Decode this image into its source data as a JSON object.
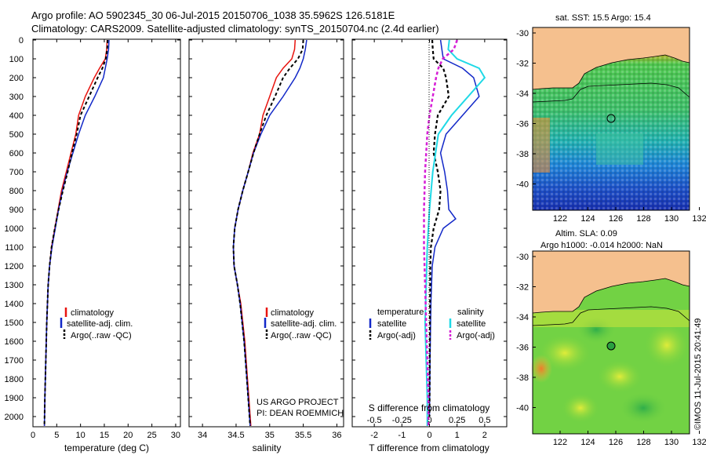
{
  "header": {
    "line1": "Argo profile: AO 5902345_30 06-Jul-2015 20150706_1038 35.5962S 126.5181E",
    "line2": "Climatology: CARS2009. Satellite-adjusted climatology: synTS_20150704.nc (2.4d earlier)"
  },
  "colors": {
    "climatology": "#e8140f",
    "satellite": "#1228c8",
    "argo": "#000000",
    "sal_satellite": "#1fd9e6",
    "sal_argo": "#d61fd6",
    "land": "#f5c08e"
  },
  "chart_data": [
    {
      "type": "line",
      "id": "temperature",
      "xlabel": "temperature (deg C)",
      "xlim": [
        0,
        31
      ],
      "xticks": [
        0,
        5,
        10,
        15,
        20,
        25,
        30
      ],
      "ylim": [
        0,
        2050
      ],
      "yticks": [
        0,
        100,
        200,
        300,
        400,
        500,
        600,
        700,
        800,
        900,
        1000,
        1100,
        1200,
        1300,
        1400,
        1500,
        1600,
        1700,
        1800,
        1900,
        2000
      ],
      "legend": [
        "climatology",
        "satellite-adj. clim.",
        "Argo(..raw -QC)"
      ],
      "series": [
        {
          "name": "climatology",
          "depth": [
            0,
            50,
            100,
            150,
            200,
            300,
            400,
            500,
            600,
            700,
            800,
            900,
            1000,
            1100,
            1200,
            1300,
            1500,
            1700,
            1900,
            2050
          ],
          "values": [
            15.6,
            15.5,
            15.2,
            14.0,
            12.9,
            11.0,
            9.6,
            9.0,
            8.0,
            7.0,
            6.0,
            5.3,
            4.6,
            3.9,
            3.5,
            3.2,
            2.9,
            2.7,
            2.5,
            2.4
          ]
        },
        {
          "name": "satellite-adj. clim.",
          "depth": [
            0,
            50,
            100,
            150,
            200,
            300,
            400,
            500,
            600,
            700,
            800,
            900,
            1000,
            1100,
            1200,
            1300,
            1500,
            1700,
            1900,
            2050
          ],
          "values": [
            16.0,
            15.9,
            15.6,
            15.2,
            14.8,
            13.0,
            11.0,
            9.6,
            8.4,
            7.2,
            6.2,
            5.4,
            4.7,
            4.0,
            3.5,
            3.2,
            2.9,
            2.7,
            2.5,
            2.4
          ]
        },
        {
          "name": "Argo(..raw -QC)",
          "depth": [
            0,
            50,
            100,
            150,
            200,
            300,
            400,
            500,
            600,
            700,
            800,
            900,
            1000,
            1100,
            1200,
            1300,
            1500,
            1700,
            1900,
            2050
          ],
          "values": [
            15.7,
            15.6,
            15.3,
            14.6,
            13.6,
            11.8,
            10.0,
            9.2,
            8.2,
            7.3,
            6.3,
            5.4,
            4.6,
            3.9,
            3.5,
            3.2,
            2.9,
            2.7,
            2.5,
            2.4
          ]
        }
      ]
    },
    {
      "type": "line",
      "id": "salinity",
      "xlabel": "salinity",
      "xlim": [
        33.8,
        36.1
      ],
      "xticks": [
        34,
        34.5,
        35,
        35.5,
        36
      ],
      "ylim": [
        0,
        2050
      ],
      "legend": [
        "climatology",
        "satellite-adj. clim.",
        "Argo(..raw -QC)"
      ],
      "annotation": [
        "US ARGO PROJECT",
        "PI: DEAN ROEMMICH"
      ],
      "series": [
        {
          "name": "climatology",
          "depth": [
            0,
            50,
            100,
            150,
            200,
            300,
            400,
            500,
            600,
            700,
            800,
            900,
            1000,
            1100,
            1200,
            1300,
            1400,
            1600,
            1800,
            2050
          ],
          "values": [
            35.38,
            35.37,
            35.33,
            35.2,
            35.1,
            35.0,
            34.9,
            34.85,
            34.75,
            34.68,
            34.6,
            34.53,
            34.48,
            34.46,
            34.47,
            34.52,
            34.57,
            34.63,
            34.67,
            34.72
          ]
        },
        {
          "name": "satellite-adj. clim.",
          "depth": [
            0,
            50,
            100,
            150,
            200,
            300,
            400,
            500,
            600,
            700,
            800,
            900,
            1000,
            1100,
            1200,
            1300,
            1400,
            1600,
            1800,
            2050
          ],
          "values": [
            35.55,
            35.53,
            35.5,
            35.45,
            35.38,
            35.2,
            35.0,
            34.87,
            34.76,
            34.68,
            34.6,
            34.53,
            34.48,
            34.46,
            34.47,
            34.52,
            34.56,
            34.62,
            34.66,
            34.71
          ]
        },
        {
          "name": "Argo(..raw -QC)",
          "depth": [
            0,
            50,
            100,
            150,
            200,
            300,
            400,
            500,
            600,
            700,
            800,
            900,
            1000,
            1100,
            1200,
            1300,
            1400,
            1600,
            1800,
            2050
          ],
          "values": [
            35.5,
            35.49,
            35.42,
            35.3,
            35.2,
            35.08,
            34.95,
            34.85,
            34.76,
            34.68,
            34.6,
            34.53,
            34.48,
            34.46,
            34.47,
            34.52,
            34.56,
            34.62,
            34.66,
            34.71
          ]
        }
      ]
    },
    {
      "type": "line",
      "id": "difference",
      "xlabel_top": "S difference from climatology",
      "xlabel_bottom": "T difference from climatology",
      "s_ticks": [
        "-0.5",
        "-0.25",
        "0",
        "0.25",
        "0.5"
      ],
      "t_ticks": [
        "-2",
        "-1",
        "0",
        "1",
        "2"
      ],
      "xlim": [
        -2.8,
        2.8
      ],
      "ylim": [
        0,
        2050
      ],
      "legend_left_title": "temperature",
      "legend_right_title": "salinity",
      "legend_left": [
        "satellite",
        "Argo(-adj)"
      ],
      "legend_right": [
        "satellite",
        "Argo(-adj)"
      ],
      "series": [
        {
          "name": "T satellite",
          "depth": [
            0,
            50,
            100,
            150,
            200,
            300,
            400,
            500,
            600,
            700,
            800,
            900,
            950,
            1000,
            1100,
            1200,
            1400,
            1700,
            2000
          ],
          "values": [
            0.4,
            0.45,
            0.5,
            1.2,
            1.6,
            1.8,
            1.2,
            0.6,
            0.4,
            0.55,
            0.65,
            0.7,
            0.95,
            0.5,
            0.2,
            0.1,
            0.05,
            0.02,
            0.0
          ]
        },
        {
          "name": "T Argo(-adj)",
          "depth": [
            0,
            50,
            100,
            150,
            200,
            300,
            400,
            500,
            600,
            700,
            800,
            900,
            1000,
            1100,
            1200,
            1400,
            1700,
            2000
          ],
          "values": [
            0.1,
            0.12,
            0.15,
            0.5,
            0.6,
            0.7,
            0.3,
            0.2,
            0.15,
            0.3,
            0.4,
            0.35,
            0.15,
            0.05,
            0.03,
            0.02,
            0.01,
            0.0
          ]
        },
        {
          "name": "S satellite",
          "depth": [
            0,
            50,
            100,
            150,
            200,
            300,
            400,
            500,
            700,
            900,
            1100,
            1300,
            1500,
            1700,
            1900,
            2050
          ],
          "values": [
            0.18,
            0.17,
            0.25,
            0.45,
            0.5,
            0.35,
            0.2,
            0.08,
            0.03,
            0.0,
            -0.02,
            -0.03,
            -0.04,
            -0.03,
            -0.02,
            -0.02
          ]
        },
        {
          "name": "S Argo(-adj)",
          "depth": [
            0,
            50,
            100,
            150,
            200,
            300,
            400,
            500,
            700,
            900,
            1100,
            1300,
            1500,
            1700,
            1900,
            2050
          ],
          "values": [
            0.25,
            0.22,
            0.12,
            0.08,
            0.06,
            0.03,
            0.0,
            -0.02,
            -0.04,
            -0.05,
            -0.05,
            -0.04,
            -0.03,
            -0.02,
            -0.01,
            -0.01
          ]
        }
      ]
    }
  ],
  "maps": {
    "sst": {
      "title": "sat. SST: 15.5 Argo: 15.4",
      "lat_ticks": [
        "-30",
        "-32",
        "-34",
        "-36",
        "-38",
        "-40"
      ],
      "lon_ticks": [
        "122",
        "124",
        "126",
        "128",
        "130",
        "132"
      ]
    },
    "sla": {
      "title1": "Altim. SLA: 0.09",
      "title2": "Argo h1000: -0.014 h2000: NaN",
      "lat_ticks": [
        "-30",
        "-32",
        "-34",
        "-36",
        "-38",
        "-40"
      ],
      "lon_ticks": [
        "122",
        "124",
        "126",
        "128",
        "130",
        "132"
      ]
    }
  },
  "credit": "©IMOS 11-Jul-2015 20:41:49"
}
